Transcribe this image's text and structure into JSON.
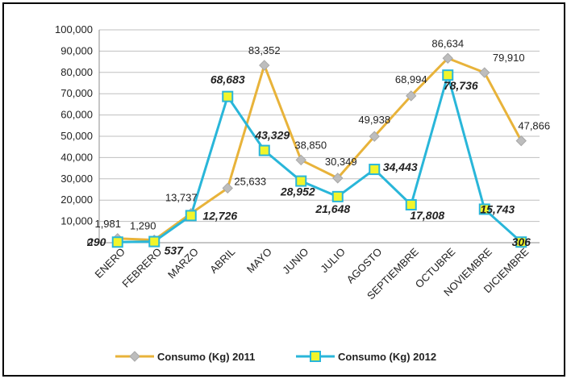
{
  "chart_data": {
    "type": "line",
    "categories": [
      "ENERO",
      "FEBRERO",
      "MARZO",
      "ABRIL",
      "MAYO",
      "JUNIO",
      "JULIO",
      "AGOSTO",
      "SEPTIEMBRE",
      "OCTUBRE",
      "NOVIEMBRE",
      "DICIEMBRE"
    ],
    "ylim": [
      0,
      100000
    ],
    "yticks": [
      "0",
      "10,000",
      "20,000",
      "30,000",
      "40,000",
      "50,000",
      "60,000",
      "70,000",
      "80,000",
      "90,000",
      "100,000"
    ],
    "grid": true,
    "legend_position": "bottom",
    "series": [
      {
        "name": "Consumo (Kg) 2011",
        "color": "#E8B33A",
        "marker_color": "#BDBDBD",
        "marker": "diamond",
        "values": [
          1981,
          1290,
          13737,
          25633,
          83352,
          38850,
          30349,
          49938,
          68994,
          86634,
          79910,
          47866
        ],
        "labels": [
          "1,981",
          "1,290",
          "13,737",
          "25,633",
          "83,352",
          "38,850",
          "30,349",
          "49,938",
          "68,994",
          "86,634",
          "79,910",
          "47,866"
        ]
      },
      {
        "name": "Consumo (Kg) 2012",
        "color": "#29B6D9",
        "marker_color": "#F2F52A",
        "marker": "square",
        "values": [
          290,
          537,
          12726,
          68683,
          43329,
          28952,
          21648,
          34443,
          17808,
          78736,
          15743,
          306
        ],
        "labels": [
          "290",
          "537",
          "12,726",
          "68,683",
          "43,329",
          "28,952",
          "21,648",
          "34,443",
          "17,808",
          "78,736",
          "15,743",
          "306"
        ]
      }
    ]
  }
}
